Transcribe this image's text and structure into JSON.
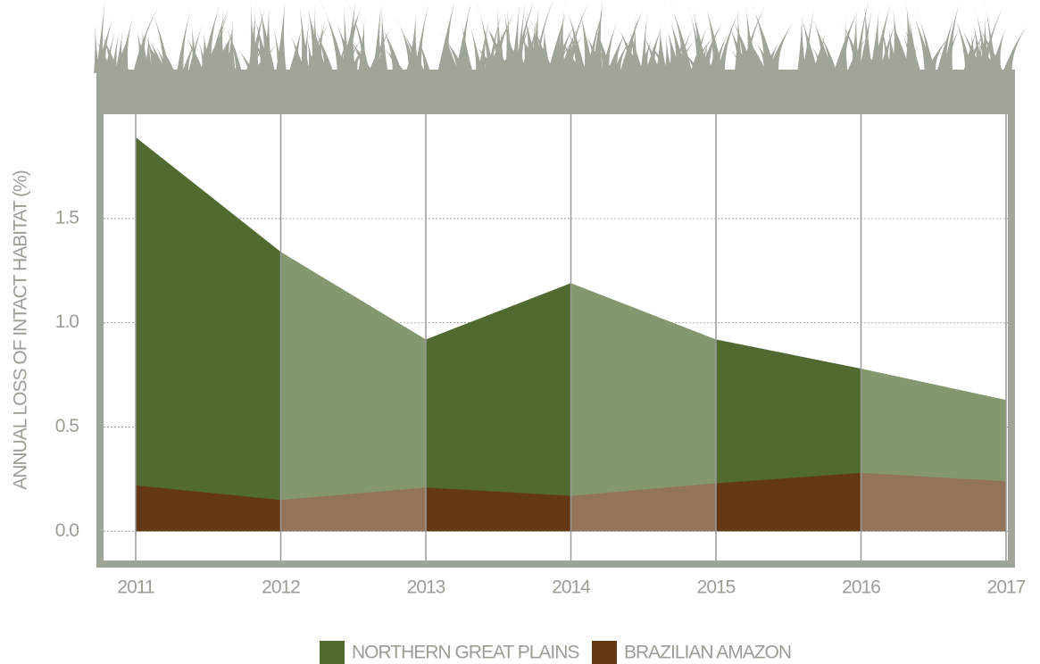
{
  "chart_data": {
    "type": "area",
    "y_label": "ANNUAL LOSS OF INTACT HABITAT (%)",
    "x": [
      2011,
      2012,
      2013,
      2014,
      2015,
      2016,
      2017
    ],
    "series": [
      {
        "name": "NORTHERN GREAT PLAINS",
        "color": "#506a30",
        "values": [
          1.89,
          1.34,
          0.92,
          1.19,
          0.92,
          0.78,
          0.63
        ]
      },
      {
        "name": "BRAZILIAN AMAZON",
        "color": "#653815",
        "values": [
          0.22,
          0.15,
          0.21,
          0.17,
          0.23,
          0.28,
          0.24
        ]
      }
    ],
    "xlim": [
      2011,
      2017
    ],
    "xticks": [
      2011,
      2012,
      2013,
      2014,
      2015,
      2016,
      2017
    ],
    "ylim": [
      -0.14,
      2.0
    ],
    "yticks": [
      {
        "value": 0,
        "label": "0.0"
      },
      0.5,
      {
        "value": 1,
        "label": "1.0"
      },
      1.5
    ],
    "grid": true,
    "legend": "bottom"
  }
}
